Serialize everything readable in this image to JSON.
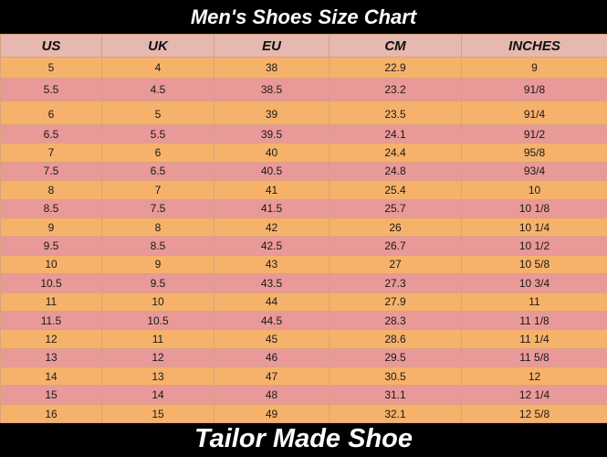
{
  "title": "Men's Shoes Size Chart",
  "footer": "Tailor Made Shoe",
  "colors": {
    "header": "#e6b8af",
    "row_odd": "#f6b26b",
    "row_even": "#ea9999",
    "background": "#000000"
  },
  "columns": [
    "US",
    "UK",
    "EU",
    "CM",
    "INCHES"
  ],
  "rows": [
    [
      "5",
      "4",
      "38",
      "22.9",
      "9"
    ],
    [
      "5.5",
      "4.5",
      "38.5",
      "23.2",
      "91/8"
    ],
    [
      "6",
      "5",
      "39",
      "23.5",
      "91/4"
    ],
    [
      "6.5",
      "5.5",
      "39.5",
      "24.1",
      "91/2"
    ],
    [
      "7",
      "6",
      "40",
      "24.4",
      "95/8"
    ],
    [
      "7.5",
      "6.5",
      "40.5",
      "24.8",
      "93/4"
    ],
    [
      "8",
      "7",
      "41",
      "25.4",
      "10"
    ],
    [
      "8.5",
      "7.5",
      "41.5",
      "25.7",
      "10 1/8"
    ],
    [
      "9",
      "8",
      "42",
      "26",
      "10 1/4"
    ],
    [
      "9.5",
      "8.5",
      "42.5",
      "26.7",
      "10 1/2"
    ],
    [
      "10",
      "9",
      "43",
      "27",
      "10 5/8"
    ],
    [
      "10.5",
      "9.5",
      "43.5",
      "27.3",
      "10 3/4"
    ],
    [
      "11",
      "10",
      "44",
      "27.9",
      "11"
    ],
    [
      "11.5",
      "10.5",
      "44.5",
      "28.3",
      "11 1/8"
    ],
    [
      "12",
      "11",
      "45",
      "28.6",
      "11 1/4"
    ],
    [
      "13",
      "12",
      "46",
      "29.5",
      "11 5/8"
    ],
    [
      "14",
      "13",
      "47",
      "30.5",
      "12"
    ],
    [
      "15",
      "14",
      "48",
      "31.1",
      "12 1/4"
    ],
    [
      "16",
      "15",
      "49",
      "32.1",
      "12 5/8"
    ]
  ]
}
